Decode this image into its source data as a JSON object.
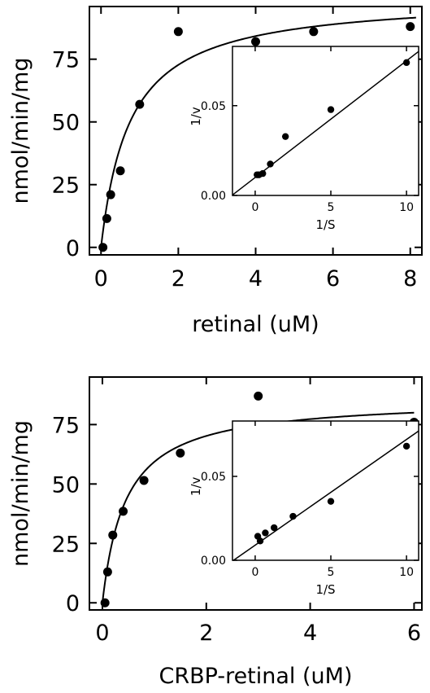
{
  "chart_data": [
    {
      "type": "scatter",
      "title": "",
      "xlabel": "retinal (uM)",
      "ylabel": "nmol/min/mg",
      "xlim": [
        -0.3,
        8.3
      ],
      "ylim": [
        -3,
        96
      ],
      "x_ticks": [
        0,
        2,
        4,
        6,
        8
      ],
      "y_ticks": [
        0,
        25,
        50,
        75
      ],
      "grid": false,
      "points": {
        "x": [
          0.05,
          0.15,
          0.25,
          0.5,
          1.0,
          2.0,
          4.0,
          5.5,
          8.0
        ],
        "y": [
          0,
          11.5,
          21,
          30.5,
          57,
          86,
          82,
          86,
          88
        ]
      },
      "fit": {
        "model": "michaelis-menten",
        "vmax": 100,
        "km": 0.75
      },
      "inset": {
        "type": "scatter",
        "xlabel": "1/S",
        "ylabel": "1/v",
        "xlim": [
          -1.5,
          10.8
        ],
        "ylim": [
          0,
          0.083
        ],
        "x_ticks": [
          0,
          5,
          10
        ],
        "y_ticks": [
          0.0,
          0.05
        ],
        "y_tick_labels": [
          "0.00",
          "0.05"
        ],
        "points": {
          "x": [
            0.125,
            0.25,
            0.5,
            1.0,
            2.0,
            5.0,
            10.0
          ],
          "y": [
            0.0115,
            0.0115,
            0.0122,
            0.0175,
            0.0328,
            0.0478,
            0.074
          ]
        },
        "line": {
          "slope": 0.0065,
          "intercept": 0.01,
          "x_range": [
            -1.5,
            10.8
          ]
        }
      }
    },
    {
      "type": "scatter",
      "title": "",
      "xlabel": "CRBP-retinal (uM)",
      "ylabel": "nmol/min/mg",
      "xlim": [
        -0.25,
        6.15
      ],
      "ylim": [
        -3,
        95
      ],
      "x_ticks": [
        0,
        2,
        4,
        6
      ],
      "y_ticks": [
        0,
        25,
        50,
        75
      ],
      "grid": false,
      "points": {
        "x": [
          0.05,
          0.1,
          0.2,
          0.4,
          0.8,
          1.5,
          3.0,
          4.5,
          6.0
        ],
        "y": [
          0,
          13,
          28.5,
          38.5,
          51.5,
          63,
          87,
          72.5,
          76
        ]
      },
      "fit": {
        "model": "michaelis-menten",
        "vmax": 86,
        "km": 0.45
      },
      "inset": {
        "type": "scatter",
        "xlabel": "1/S",
        "ylabel": "1/v",
        "xlim": [
          -1.5,
          10.8
        ],
        "ylim": [
          0,
          0.083
        ],
        "x_ticks": [
          0,
          5,
          10
        ],
        "y_ticks": [
          0.0,
          0.05
        ],
        "y_tick_labels": [
          "0.00",
          "0.05"
        ],
        "points": {
          "x": [
            0.17,
            0.33,
            0.67,
            1.25,
            2.5,
            5.0,
            10.0
          ],
          "y": [
            0.0143,
            0.0115,
            0.0163,
            0.0194,
            0.0262,
            0.0351,
            0.068
          ]
        },
        "line": {
          "slope": 0.0063,
          "intercept": 0.009,
          "x_range": [
            -1.5,
            10.8
          ]
        }
      }
    }
  ]
}
